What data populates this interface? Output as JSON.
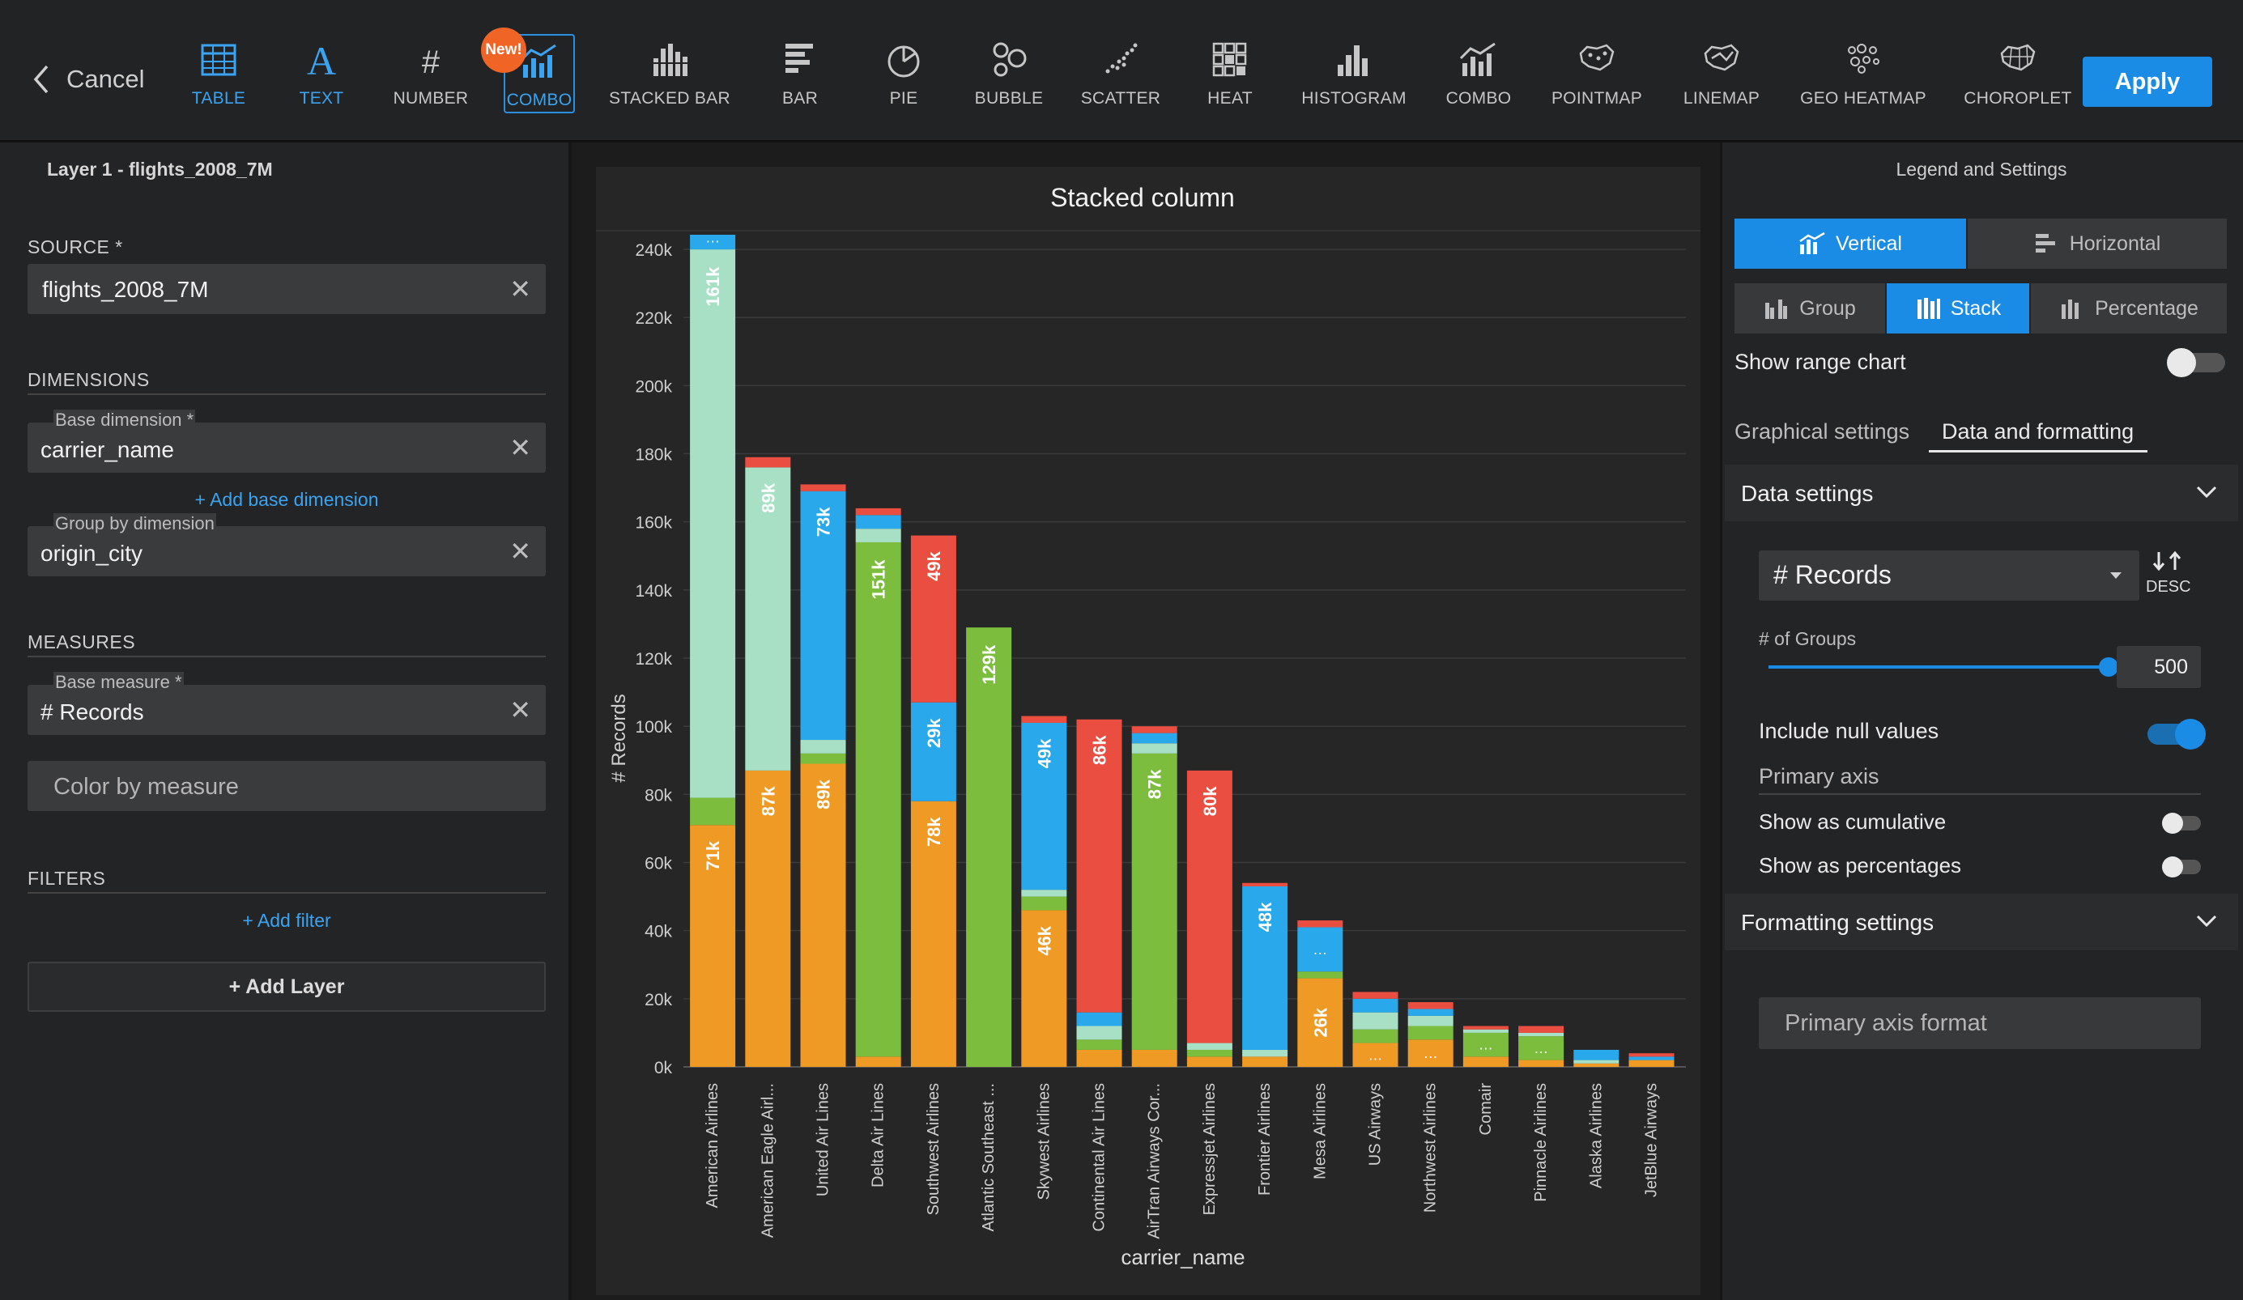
{
  "toolbar": {
    "cancel_label": "Cancel",
    "new_badge": "New!",
    "apply_label": "Apply",
    "tools": [
      {
        "label": "TABLE",
        "icon": "table-icon"
      },
      {
        "label": "TEXT",
        "icon": "text-icon"
      },
      {
        "label": "NUMBER",
        "icon": "number-icon"
      },
      {
        "label": "COMBO",
        "icon": "combo-icon"
      },
      {
        "label": "STACKED BAR",
        "icon": "stacked-bar-icon"
      },
      {
        "label": "BAR",
        "icon": "bar-icon"
      },
      {
        "label": "PIE",
        "icon": "pie-icon"
      },
      {
        "label": "BUBBLE",
        "icon": "bubble-icon"
      },
      {
        "label": "SCATTER",
        "icon": "scatter-icon"
      },
      {
        "label": "HEAT",
        "icon": "heat-icon"
      },
      {
        "label": "HISTOGRAM",
        "icon": "histogram-icon"
      },
      {
        "label": "COMBO",
        "icon": "combo-icon"
      },
      {
        "label": "POINTMAP",
        "icon": "pointmap-icon"
      },
      {
        "label": "LINEMAP",
        "icon": "linemap-icon"
      },
      {
        "label": "GEO HEATMAP",
        "icon": "geo-heatmap-icon"
      },
      {
        "label": "CHOROPLET",
        "icon": "choropleth-icon"
      }
    ]
  },
  "left": {
    "layer_title": "Layer 1 - flights_2008_7M",
    "source_label": "SOURCE *",
    "source_value": "flights_2008_7M",
    "dimensions_label": "DIMENSIONS",
    "base_dimension_label": "Base dimension *",
    "base_dimension_value": "carrier_name",
    "add_base_dimension": "+ Add base dimension",
    "group_dimension_label": "Group by dimension",
    "group_dimension_value": "origin_city",
    "measures_label": "MEASURES",
    "base_measure_label": "Base measure *",
    "base_measure_value": "# Records",
    "color_by_measure": "Color by measure",
    "filters_label": "FILTERS",
    "add_filter": "+ Add filter",
    "add_layer": "+ Add Layer"
  },
  "right": {
    "title": "Legend and Settings",
    "vertical": "Vertical",
    "horizontal": "Horizontal",
    "group": "Group",
    "stack": "Stack",
    "percentage": "Percentage",
    "show_range_chart": "Show range chart",
    "tab_graphical": "Graphical settings",
    "tab_data": "Data and formatting",
    "data_settings": "Data settings",
    "sort_measure": "# Records",
    "sort_order": "DESC",
    "groups_label": "# of Groups",
    "groups_value": "500",
    "groups_fraction": 1.0,
    "include_null": "Include null values",
    "primary_axis": "Primary axis",
    "show_cumulative": "Show as cumulative",
    "show_percentages": "Show as percentages",
    "formatting_settings": "Formatting settings",
    "primary_axis_format": "Primary axis format",
    "colors": {
      "accent": "#1a8ce6"
    }
  },
  "chart_data": {
    "type": "bar",
    "stacked": true,
    "title": "Stacked column",
    "xlabel": "carrier_name",
    "ylabel": "# Records",
    "ylim": [
      0,
      250000
    ],
    "yticks": [
      "0k",
      "20k",
      "40k",
      "60k",
      "80k",
      "100k",
      "120k",
      "140k",
      "160k",
      "180k",
      "200k",
      "220k",
      "240k"
    ],
    "categories": [
      "American Airlines",
      "American Eagle Airl...",
      "United Air Lines",
      "Delta Air Lines",
      "Southwest Airlines",
      "Atlantic Southeast ...",
      "Skywest Airlines",
      "Continental Air Lines",
      "AirTran Airways Cor...",
      "Expressjet Airlines",
      "Frontier Airlines",
      "Mesa Airlines",
      "US Airways",
      "Northwest Airlines",
      "Comair",
      "Pinnacle Airlines",
      "Alaska Airlines",
      "JetBlue Airways"
    ],
    "colors": [
      "#ee9a25",
      "#7dbd3e",
      "#a7e0c5",
      "#29a8ec",
      "#e94e41"
    ],
    "stacks": [
      [
        [
          71000,
          "#ee9a25",
          "71k"
        ],
        [
          8000,
          "#7dbd3e",
          ""
        ],
        [
          161000,
          "#a7e0c5",
          "161k"
        ],
        [
          7000,
          "#29a8ec",
          "…"
        ],
        [
          4000,
          "#e94e41",
          ""
        ]
      ],
      [
        [
          87000,
          "#ee9a25",
          "87k"
        ],
        [
          89000,
          "#a7e0c5",
          "89k"
        ],
        [
          3000,
          "#e94e41",
          ""
        ]
      ],
      [
        [
          89000,
          "#ee9a25",
          "89k"
        ],
        [
          3000,
          "#7dbd3e",
          ""
        ],
        [
          4000,
          "#a7e0c5",
          ""
        ],
        [
          73000,
          "#29a8ec",
          "73k"
        ],
        [
          2000,
          "#e94e41",
          ""
        ]
      ],
      [
        [
          3000,
          "#ee9a25",
          ""
        ],
        [
          151000,
          "#7dbd3e",
          "151k"
        ],
        [
          4000,
          "#a7e0c5",
          ""
        ],
        [
          4000,
          "#29a8ec",
          ""
        ],
        [
          2000,
          "#e94e41",
          ""
        ]
      ],
      [
        [
          78000,
          "#ee9a25",
          "78k"
        ],
        [
          29000,
          "#29a8ec",
          "29k"
        ],
        [
          49000,
          "#e94e41",
          "49k"
        ]
      ],
      [
        [
          129000,
          "#7dbd3e",
          "129k"
        ]
      ],
      [
        [
          46000,
          "#ee9a25",
          "46k"
        ],
        [
          4000,
          "#7dbd3e",
          ""
        ],
        [
          2000,
          "#a7e0c5",
          ""
        ],
        [
          49000,
          "#29a8ec",
          "49k"
        ],
        [
          2000,
          "#e94e41",
          ""
        ]
      ],
      [
        [
          5000,
          "#ee9a25",
          ""
        ],
        [
          3000,
          "#7dbd3e",
          ""
        ],
        [
          4000,
          "#a7e0c5",
          ""
        ],
        [
          4000,
          "#29a8ec",
          ""
        ],
        [
          86000,
          "#e94e41",
          "86k"
        ]
      ],
      [
        [
          5000,
          "#ee9a25",
          ""
        ],
        [
          87000,
          "#7dbd3e",
          "87k"
        ],
        [
          3000,
          "#a7e0c5",
          ""
        ],
        [
          3000,
          "#29a8ec",
          ""
        ],
        [
          2000,
          "#e94e41",
          ""
        ]
      ],
      [
        [
          3000,
          "#ee9a25",
          ""
        ],
        [
          2000,
          "#7dbd3e",
          ""
        ],
        [
          2000,
          "#a7e0c5",
          ""
        ],
        [
          80000,
          "#e94e41",
          "80k"
        ]
      ],
      [
        [
          3000,
          "#ee9a25",
          ""
        ],
        [
          2000,
          "#a7e0c5",
          ""
        ],
        [
          48000,
          "#29a8ec",
          "48k"
        ],
        [
          1000,
          "#e94e41",
          ""
        ]
      ],
      [
        [
          26000,
          "#ee9a25",
          "26k"
        ],
        [
          2000,
          "#7dbd3e",
          ""
        ],
        [
          13000,
          "#29a8ec",
          "…"
        ],
        [
          2000,
          "#e94e41",
          ""
        ]
      ],
      [
        [
          7000,
          "#ee9a25",
          "…"
        ],
        [
          4000,
          "#7dbd3e",
          ""
        ],
        [
          5000,
          "#a7e0c5",
          ""
        ],
        [
          4000,
          "#29a8ec",
          ""
        ],
        [
          2000,
          "#e94e41",
          ""
        ]
      ],
      [
        [
          8000,
          "#ee9a25",
          "…"
        ],
        [
          4000,
          "#7dbd3e",
          ""
        ],
        [
          3000,
          "#a7e0c5",
          ""
        ],
        [
          2000,
          "#29a8ec",
          ""
        ],
        [
          2000,
          "#e94e41",
          ""
        ]
      ],
      [
        [
          3000,
          "#ee9a25",
          ""
        ],
        [
          7000,
          "#7dbd3e",
          "…"
        ],
        [
          1000,
          "#a7e0c5",
          ""
        ],
        [
          1000,
          "#e94e41",
          ""
        ]
      ],
      [
        [
          2000,
          "#ee9a25",
          ""
        ],
        [
          7000,
          "#7dbd3e",
          "…"
        ],
        [
          1000,
          "#a7e0c5",
          ""
        ],
        [
          2000,
          "#e94e41",
          ""
        ]
      ],
      [
        [
          1000,
          "#ee9a25",
          ""
        ],
        [
          1000,
          "#a7e0c5",
          ""
        ],
        [
          3000,
          "#29a8ec",
          ""
        ]
      ],
      [
        [
          2000,
          "#ee9a25",
          ""
        ],
        [
          1000,
          "#29a8ec",
          ""
        ],
        [
          1000,
          "#e94e41",
          ""
        ]
      ]
    ]
  }
}
